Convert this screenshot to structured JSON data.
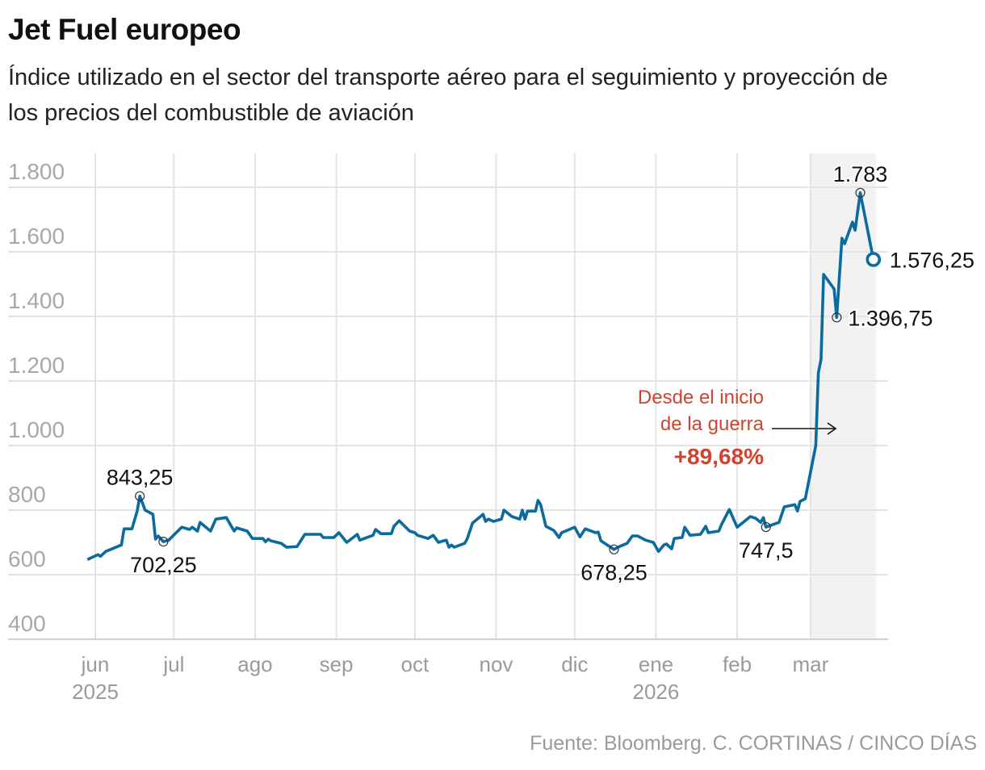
{
  "header": {
    "title": "Jet Fuel europeo",
    "subtitle": "Índice utilizado en el sector del transporte aéreo para el seguimiento y proyección de los precios del combustible de aviación"
  },
  "footer": {
    "source": "Fuente: Bloomberg. C. CORTINAS / CINCO DÍAS"
  },
  "chart_data": {
    "type": "line",
    "title": "Jet Fuel europeo",
    "ylim": [
      400,
      1850
    ],
    "yticks": [
      400,
      600,
      800,
      1000,
      1200,
      1400,
      1600,
      1800
    ],
    "ytick_labels": [
      "400",
      "600",
      "800",
      "1.000",
      "1.200",
      "1.400",
      "1.600",
      "1.800"
    ],
    "xticks": [
      {
        "date": "2025-06-01",
        "label": "jun",
        "year": "2025"
      },
      {
        "date": "2025-07-01",
        "label": "jul"
      },
      {
        "date": "2025-08-01",
        "label": "ago"
      },
      {
        "date": "2025-09-01",
        "label": "sep"
      },
      {
        "date": "2025-10-01",
        "label": "oct"
      },
      {
        "date": "2025-11-01",
        "label": "nov"
      },
      {
        "date": "2025-12-01",
        "label": "dic"
      },
      {
        "date": "2026-01-01",
        "label": "ene",
        "year": "2026"
      },
      {
        "date": "2026-02-01",
        "label": "feb"
      },
      {
        "date": "2026-03-01",
        "label": "mar"
      }
    ],
    "grid": true,
    "line_color": "#0b6b9c",
    "shaded_period": {
      "start": "2026-03-01",
      "end": "2026-03-26",
      "color": "#f2f2f2"
    },
    "series": [
      {
        "values": [
          [
            "2025-05-29",
            647
          ],
          [
            "2025-06-02",
            662
          ],
          [
            "2025-06-03",
            657
          ],
          [
            "2025-06-05",
            672
          ],
          [
            "2025-06-08",
            682
          ],
          [
            "2025-06-11",
            692
          ],
          [
            "2025-06-12",
            742
          ],
          [
            "2025-06-15",
            742
          ],
          [
            "2025-06-17",
            797
          ],
          [
            "2025-06-18",
            843.25
          ],
          [
            "2025-06-20",
            800
          ],
          [
            "2025-06-23",
            787
          ],
          [
            "2025-06-24",
            710
          ],
          [
            "2025-06-25",
            720
          ],
          [
            "2025-06-27",
            702.25
          ],
          [
            "2025-06-29",
            707
          ],
          [
            "2025-07-04",
            747
          ],
          [
            "2025-07-07",
            740
          ],
          [
            "2025-07-08",
            747
          ],
          [
            "2025-07-10",
            735
          ],
          [
            "2025-07-11",
            762
          ],
          [
            "2025-07-15",
            735
          ],
          [
            "2025-07-17",
            772
          ],
          [
            "2025-07-21",
            777
          ],
          [
            "2025-07-24",
            735
          ],
          [
            "2025-07-25",
            745
          ],
          [
            "2025-07-29",
            735
          ],
          [
            "2025-07-31",
            712
          ],
          [
            "2025-08-04",
            712
          ],
          [
            "2025-08-05",
            702
          ],
          [
            "2025-08-06",
            710
          ],
          [
            "2025-08-07",
            705
          ],
          [
            "2025-08-11",
            697
          ],
          [
            "2025-08-13",
            685
          ],
          [
            "2025-08-17",
            687
          ],
          [
            "2025-08-20",
            725
          ],
          [
            "2025-08-26",
            725
          ],
          [
            "2025-08-27",
            715
          ],
          [
            "2025-08-31",
            715
          ],
          [
            "2025-09-02",
            730
          ],
          [
            "2025-09-05",
            700
          ],
          [
            "2025-09-09",
            725
          ],
          [
            "2025-09-10",
            707
          ],
          [
            "2025-09-15",
            722
          ],
          [
            "2025-09-16",
            740
          ],
          [
            "2025-09-18",
            727
          ],
          [
            "2025-09-22",
            727
          ],
          [
            "2025-09-23",
            750
          ],
          [
            "2025-09-25",
            767
          ],
          [
            "2025-09-29",
            735
          ],
          [
            "2025-10-01",
            730
          ],
          [
            "2025-10-02",
            722
          ],
          [
            "2025-10-06",
            712
          ],
          [
            "2025-10-08",
            722
          ],
          [
            "2025-10-10",
            700
          ],
          [
            "2025-10-12",
            705
          ],
          [
            "2025-10-13",
            707
          ],
          [
            "2025-10-14",
            685
          ],
          [
            "2025-10-15",
            692
          ],
          [
            "2025-10-16",
            685
          ],
          [
            "2025-10-20",
            697
          ],
          [
            "2025-10-21",
            712
          ],
          [
            "2025-10-23",
            760
          ],
          [
            "2025-10-27",
            787
          ],
          [
            "2025-10-28",
            765
          ],
          [
            "2025-10-29",
            772
          ],
          [
            "2025-10-31",
            765
          ],
          [
            "2025-11-03",
            772
          ],
          [
            "2025-11-04",
            800
          ],
          [
            "2025-11-07",
            780
          ],
          [
            "2025-11-10",
            772
          ],
          [
            "2025-11-11",
            800
          ],
          [
            "2025-11-12",
            772
          ],
          [
            "2025-11-13",
            797
          ],
          [
            "2025-11-16",
            797
          ],
          [
            "2025-11-17",
            830
          ],
          [
            "2025-11-18",
            817
          ],
          [
            "2025-11-20",
            750
          ],
          [
            "2025-11-23",
            737
          ],
          [
            "2025-11-25",
            715
          ],
          [
            "2025-11-26",
            730
          ],
          [
            "2025-12-01",
            747
          ],
          [
            "2025-12-03",
            717
          ],
          [
            "2025-12-05",
            742
          ],
          [
            "2025-12-09",
            730
          ],
          [
            "2025-12-10",
            732
          ],
          [
            "2025-12-11",
            705
          ],
          [
            "2025-12-16",
            678.25
          ],
          [
            "2025-12-18",
            687
          ],
          [
            "2025-12-21",
            697
          ],
          [
            "2025-12-23",
            720
          ],
          [
            "2025-12-25",
            720
          ],
          [
            "2025-12-28",
            707
          ],
          [
            "2025-12-31",
            700
          ],
          [
            "2026-01-02",
            672
          ],
          [
            "2026-01-04",
            692
          ],
          [
            "2026-01-05",
            695
          ],
          [
            "2026-01-07",
            680
          ],
          [
            "2026-01-08",
            712
          ],
          [
            "2026-01-11",
            715
          ],
          [
            "2026-01-12",
            747
          ],
          [
            "2026-01-14",
            722
          ],
          [
            "2026-01-18",
            725
          ],
          [
            "2026-01-20",
            750
          ],
          [
            "2026-01-21",
            730
          ],
          [
            "2026-01-25",
            735
          ],
          [
            "2026-01-26",
            755
          ],
          [
            "2026-01-29",
            802
          ],
          [
            "2026-02-01",
            747
          ],
          [
            "2026-02-06",
            780
          ],
          [
            "2026-02-08",
            775
          ],
          [
            "2026-02-10",
            762
          ],
          [
            "2026-02-11",
            777
          ],
          [
            "2026-02-12",
            747.5
          ],
          [
            "2026-02-17",
            762
          ],
          [
            "2026-02-19",
            810
          ],
          [
            "2026-02-23",
            817
          ],
          [
            "2026-02-24",
            797
          ],
          [
            "2026-02-25",
            827
          ],
          [
            "2026-02-27",
            835
          ],
          [
            "2026-03-03",
            1000
          ],
          [
            "2026-03-04",
            1225
          ],
          [
            "2026-03-05",
            1267
          ],
          [
            "2026-03-06",
            1530
          ],
          [
            "2026-03-10",
            1485
          ],
          [
            "2026-03-11",
            1396.75
          ],
          [
            "2026-03-13",
            1642
          ],
          [
            "2026-03-14",
            1625
          ],
          [
            "2026-03-17",
            1692
          ],
          [
            "2026-03-18",
            1667
          ],
          [
            "2026-03-20",
            1783
          ],
          [
            "2026-03-25",
            1576.25
          ]
        ]
      }
    ],
    "point_labels": [
      {
        "date": "2025-06-18",
        "value": 843.25,
        "label": "843,25",
        "pos": "above"
      },
      {
        "date": "2025-06-27",
        "value": 702.25,
        "label": "702,25",
        "pos": "below"
      },
      {
        "date": "2025-12-16",
        "value": 678.25,
        "label": "678,25",
        "pos": "below"
      },
      {
        "date": "2026-02-12",
        "value": 747.5,
        "label": "747,5",
        "pos": "below"
      },
      {
        "date": "2026-03-11",
        "value": 1396.75,
        "label": "1.396,75",
        "pos": "right"
      },
      {
        "date": "2026-03-20",
        "value": 1783,
        "label": "1.783",
        "pos": "above"
      },
      {
        "date": "2026-03-25",
        "value": 1576.25,
        "label": "1.576,25",
        "pos": "right",
        "last": true
      }
    ],
    "annotation": {
      "lines": [
        "Desde el inicio",
        "de la guerra"
      ],
      "value": "+89,68%",
      "color": "#d0432f"
    }
  }
}
